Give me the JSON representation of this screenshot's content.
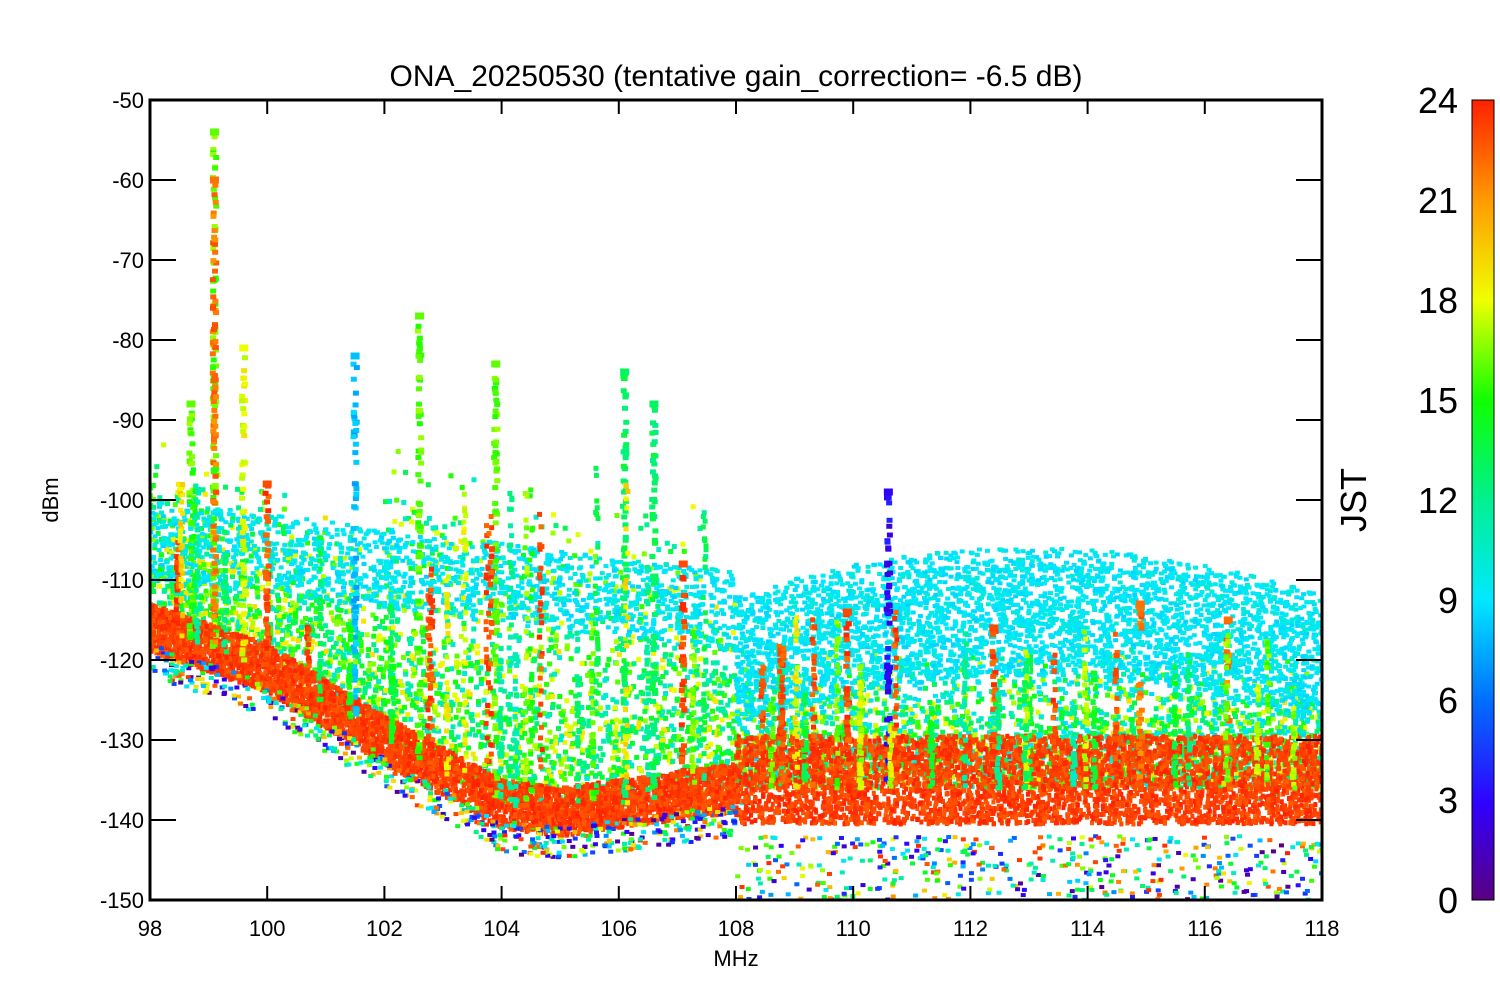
{
  "chart_data": {
    "type": "scatter",
    "title": "ONA_20250530 (tentative gain_correction= -6.5 dB)",
    "xlabel": "MHz",
    "ylabel": "dBm",
    "xlim": [
      98,
      118
    ],
    "ylim": [
      -150,
      -50
    ],
    "x_ticks": [
      98,
      100,
      102,
      104,
      106,
      108,
      110,
      112,
      114,
      116,
      118
    ],
    "y_ticks": [
      -50,
      -60,
      -70,
      -80,
      -90,
      -100,
      -110,
      -120,
      -130,
      -140,
      -150
    ],
    "grid": false,
    "colorbar": {
      "title": "JST",
      "range": [
        0,
        24
      ],
      "ticks": [
        0,
        3,
        6,
        9,
        12,
        15,
        18,
        21,
        24
      ],
      "colormap": "rainbow"
    },
    "colors": {
      "night": "#ff3b00",
      "day": "#22e000",
      "morning": "#00e8f0",
      "evening": "#d8f000"
    },
    "series": [
      {
        "color_jst": 23,
        "description_points": [
          [
            98,
            -116
          ],
          [
            100,
            -121
          ],
          [
            102,
            -130
          ],
          [
            104,
            -138
          ],
          [
            105,
            -139
          ],
          [
            106,
            -138
          ],
          [
            107,
            -137
          ],
          [
            108,
            -136
          ],
          [
            110,
            -136
          ],
          [
            112,
            -136
          ],
          [
            114,
            -136
          ],
          [
            116,
            -136
          ],
          [
            118,
            -136
          ]
        ]
      }
    ],
    "peaks": [
      {
        "x": 98.7,
        "y": -88,
        "jst": 16
      },
      {
        "x": 99.1,
        "y": -54,
        "jst": 16
      },
      {
        "x": 99.1,
        "y": -60,
        "jst": 22
      },
      {
        "x": 99.6,
        "y": -81,
        "jst": 18
      },
      {
        "x": 100.0,
        "y": -98,
        "jst": 23
      },
      {
        "x": 101.5,
        "y": -82,
        "jst": 8
      },
      {
        "x": 102.6,
        "y": -77,
        "jst": 16
      },
      {
        "x": 103.9,
        "y": -83,
        "jst": 16
      },
      {
        "x": 106.1,
        "y": -84,
        "jst": 13
      },
      {
        "x": 106.6,
        "y": -88,
        "jst": 13
      },
      {
        "x": 107.1,
        "y": -108,
        "jst": 23
      },
      {
        "x": 109.9,
        "y": -114,
        "jst": 23
      },
      {
        "x": 110.6,
        "y": -99,
        "jst": 3
      },
      {
        "x": 112.4,
        "y": -116,
        "jst": 23
      },
      {
        "x": 114.9,
        "y": -113,
        "jst": 22
      },
      {
        "x": 116.4,
        "y": -115,
        "jst": 22
      }
    ]
  }
}
